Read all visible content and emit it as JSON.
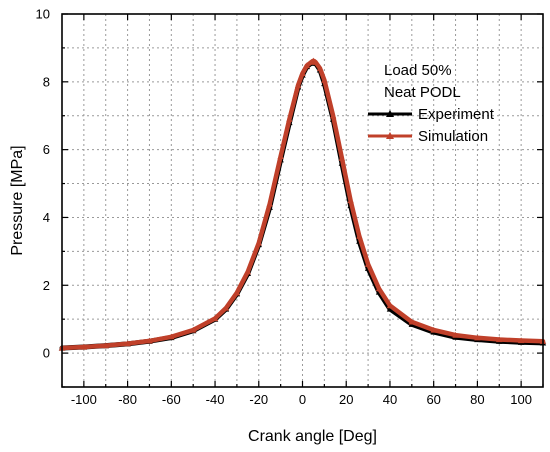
{
  "chart_data": {
    "type": "line",
    "xlabel": "Crank angle [Deg]",
    "ylabel": "Pressure [MPa]",
    "xlim": [
      -110,
      110
    ],
    "ylim": [
      -1,
      10
    ],
    "xticks": [
      -100,
      -80,
      -60,
      -40,
      -20,
      0,
      20,
      40,
      60,
      80,
      100
    ],
    "yticks": [
      0,
      2,
      4,
      6,
      8,
      10
    ],
    "grid": true,
    "legend": {
      "position": "top-right",
      "header": [
        "Load 50%",
        "Neat PODL"
      ]
    },
    "series": [
      {
        "name": "Experiment",
        "color": "#000000",
        "marker": "triangle",
        "x": [
          -110,
          -100,
          -90,
          -80,
          -70,
          -60,
          -50,
          -40,
          -35,
          -30,
          -25,
          -20,
          -15,
          -10,
          -6,
          -2,
          0,
          2,
          4,
          5,
          6,
          8,
          10,
          14,
          18,
          22,
          26,
          30,
          35,
          40,
          50,
          60,
          70,
          80,
          90,
          100,
          110
        ],
        "values": [
          0.15,
          0.18,
          0.22,
          0.27,
          0.35,
          0.46,
          0.66,
          1.0,
          1.3,
          1.75,
          2.35,
          3.2,
          4.3,
          5.7,
          6.8,
          7.85,
          8.2,
          8.45,
          8.55,
          8.6,
          8.55,
          8.35,
          7.95,
          6.9,
          5.6,
          4.35,
          3.3,
          2.5,
          1.8,
          1.3,
          0.85,
          0.62,
          0.47,
          0.4,
          0.35,
          0.32,
          0.3
        ]
      },
      {
        "name": "Simulation",
        "color": "#c0402a",
        "marker": "triangle",
        "x": [
          -110,
          -100,
          -90,
          -80,
          -70,
          -60,
          -50,
          -40,
          -35,
          -30,
          -25,
          -20,
          -15,
          -10,
          -6,
          -2,
          0,
          2,
          4,
          5,
          6,
          8,
          10,
          14,
          18,
          22,
          26,
          30,
          35,
          40,
          50,
          60,
          70,
          80,
          90,
          100,
          110
        ],
        "values": [
          0.15,
          0.18,
          0.22,
          0.28,
          0.36,
          0.48,
          0.68,
          1.02,
          1.33,
          1.78,
          2.4,
          3.25,
          4.4,
          5.8,
          6.9,
          7.9,
          8.25,
          8.48,
          8.58,
          8.62,
          8.58,
          8.4,
          8.05,
          7.0,
          5.75,
          4.5,
          3.45,
          2.62,
          1.9,
          1.4,
          0.92,
          0.68,
          0.53,
          0.45,
          0.4,
          0.37,
          0.35
        ]
      }
    ]
  }
}
